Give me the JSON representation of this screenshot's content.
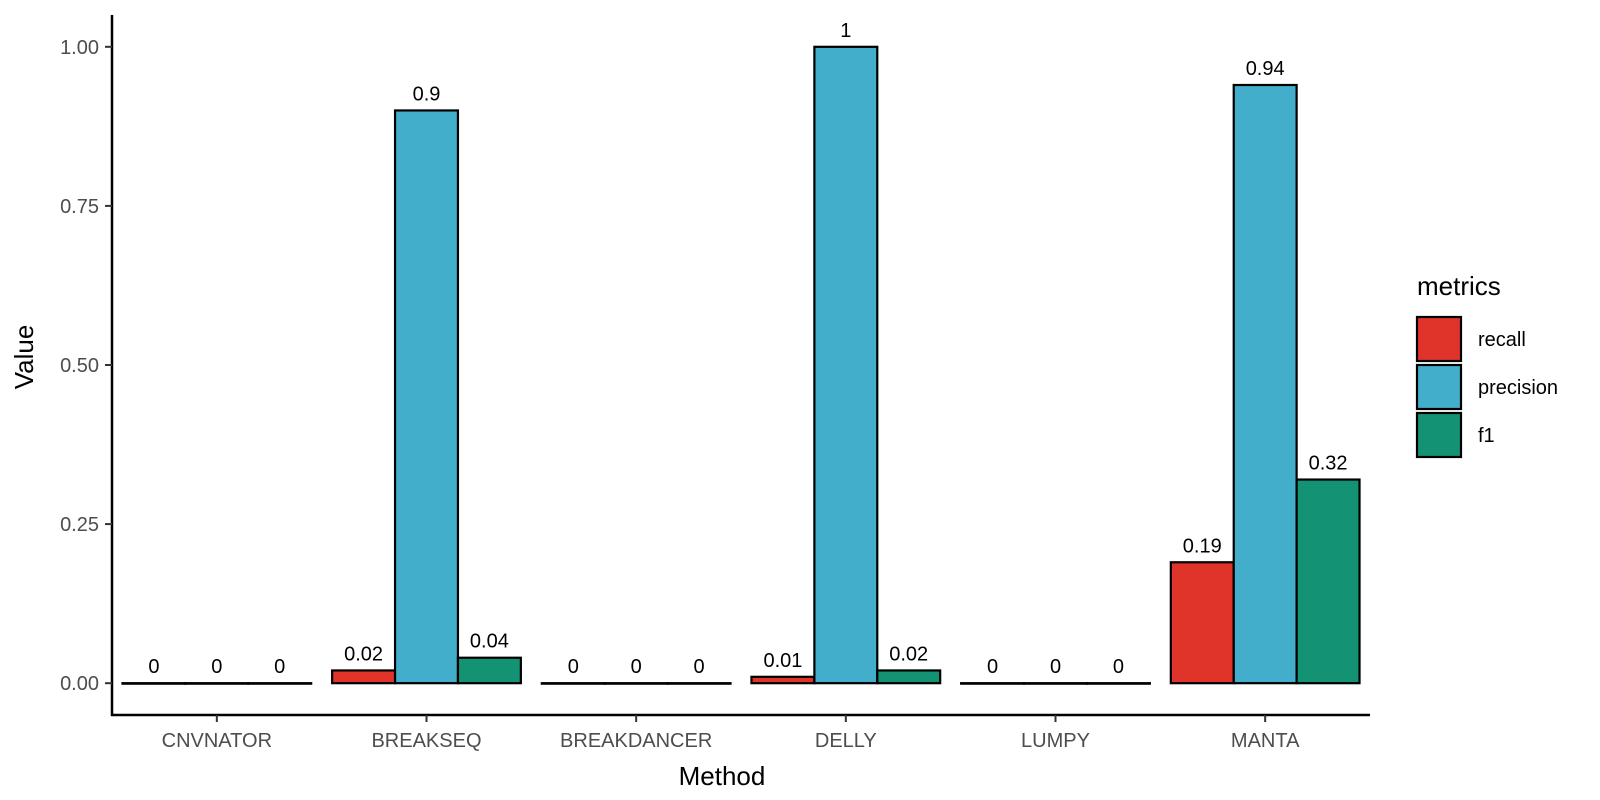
{
  "chart_data": {
    "type": "bar",
    "categories": [
      "CNVNATOR",
      "BREAKSEQ",
      "BREAKDANCER",
      "DELLY",
      "LUMPY",
      "MANTA"
    ],
    "series": [
      {
        "name": "recall",
        "values": [
          0,
          0.02,
          0,
          0.01,
          0,
          0.19
        ]
      },
      {
        "name": "precision",
        "values": [
          0,
          0.9,
          0,
          1,
          0,
          0.94
        ]
      },
      {
        "name": "f1",
        "values": [
          0,
          0.04,
          0,
          0.02,
          0,
          0.32
        ]
      }
    ],
    "data_labels": [
      [
        "0",
        "0",
        "0"
      ],
      [
        "0.02",
        "0.9",
        "0.04"
      ],
      [
        "0",
        "0",
        "0"
      ],
      [
        "0.01",
        "1",
        "0.02"
      ],
      [
        "0",
        "0",
        "0"
      ],
      [
        "0.19",
        "0.94",
        "0.32"
      ]
    ],
    "colors": {
      "recall": "#E0342A",
      "precision": "#43ADCC",
      "f1": "#139373"
    },
    "xlabel": "Method",
    "ylabel": "Value",
    "ylim": [
      -0.05,
      1.05
    ],
    "yticks": [
      "0.00",
      "0.25",
      "0.50",
      "0.75",
      "1.00"
    ],
    "ytick_values": [
      0,
      0.25,
      0.5,
      0.75,
      1.0
    ],
    "legend": {
      "title": "metrics",
      "position": "right"
    },
    "grid": false
  }
}
